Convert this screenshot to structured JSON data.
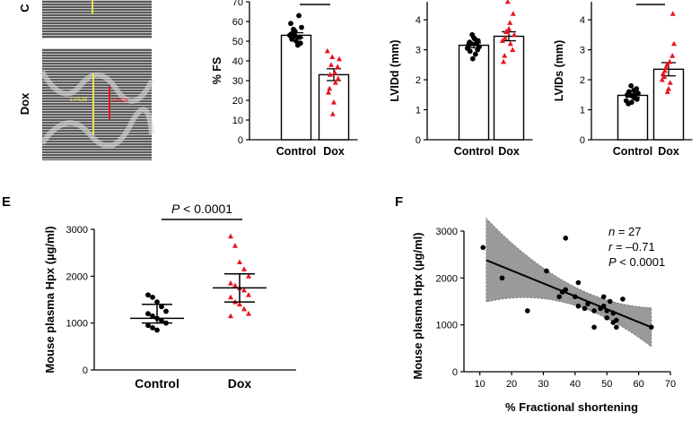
{
  "echo": {
    "top_label": "C",
    "bottom_label": "Dox",
    "lvid_d_label": "LVIDd",
    "lvid_s_label": "LVIDs"
  },
  "panels": {
    "e_letter": "E",
    "f_letter": "F"
  },
  "colors": {
    "control": "#000000",
    "dox": "#e8141d",
    "ci_band": "#9a9a9a"
  },
  "chart_data": [
    {
      "id": "fs",
      "type": "bar",
      "categories": [
        "Control",
        "Dox"
      ],
      "ylabel": "% FS",
      "ylim": [
        0,
        70
      ],
      "yticks": [
        0,
        10,
        20,
        30,
        40,
        50,
        60,
        70
      ],
      "values": [
        53,
        33
      ],
      "sem": [
        1.3,
        3.0
      ],
      "significance_bar": true,
      "points": [
        [
          53,
          56,
          52,
          48,
          57,
          51,
          54,
          50,
          52,
          49,
          59,
          53,
          55,
          63
        ],
        [
          45,
          38,
          34,
          29,
          41,
          26,
          33,
          19,
          37,
          31,
          24,
          42,
          13
        ]
      ]
    },
    {
      "id": "lvidd",
      "type": "bar",
      "categories": [
        "Control",
        "Dox"
      ],
      "ylabel": "LVIDd (mm)",
      "ylim": [
        0,
        4.6
      ],
      "yticks": [
        0,
        1,
        2,
        3,
        4
      ],
      "values": [
        3.15,
        3.45
      ],
      "sem": [
        0.08,
        0.15
      ],
      "points": [
        [
          3.05,
          3.2,
          3.35,
          2.85,
          3.1,
          3.25,
          2.95,
          3.4,
          3.0,
          3.3,
          3.15,
          3.5,
          2.7,
          3.2
        ],
        [
          3.3,
          3.6,
          3.9,
          3.2,
          3.5,
          2.8,
          3.4,
          3.7,
          3.0,
          4.2,
          2.6,
          3.6,
          4.6
        ]
      ]
    },
    {
      "id": "lvids",
      "type": "bar",
      "categories": [
        "Control",
        "Dox"
      ],
      "ylabel": "LVIDs (mm)",
      "ylim": [
        0,
        4.6
      ],
      "yticks": [
        0,
        1,
        2,
        3,
        4
      ],
      "values": [
        1.48,
        2.35
      ],
      "sem": [
        0.06,
        0.22
      ],
      "significance_bar": true,
      "points": [
        [
          1.3,
          1.5,
          1.65,
          1.4,
          1.55,
          1.2,
          1.6,
          1.45,
          1.7,
          1.35,
          1.5,
          1.8,
          1.25,
          1.5
        ],
        [
          2.0,
          2.4,
          2.6,
          1.9,
          3.2,
          2.1,
          2.3,
          1.7,
          2.8,
          4.2,
          2.2,
          2.5,
          1.6
        ]
      ]
    },
    {
      "id": "hpx",
      "type": "scatter",
      "categories": [
        "Control",
        "Dox"
      ],
      "ylabel": "Mouse plasma Hpx (µg/ml)",
      "ylim": [
        0,
        3000
      ],
      "yticks": [
        0,
        1000,
        2000,
        3000
      ],
      "annotation": "< 0.0001",
      "annotation_p": "P",
      "median": [
        1100,
        1750
      ],
      "iqr": [
        [
          1000,
          1400
        ],
        [
          1450,
          2050
        ]
      ],
      "points": [
        [
          1600,
          1550,
          1450,
          1350,
          1250,
          1200,
          1150,
          1100,
          1050,
          1000,
          950,
          900,
          850
        ],
        [
          2850,
          2650,
          2300,
          2150,
          2000,
          1850,
          1800,
          1750,
          1700,
          1600,
          1550,
          1450,
          1400,
          1300,
          1200,
          1150
        ]
      ]
    },
    {
      "id": "corr",
      "type": "scatter",
      "xlabel": "% Fractional shortening",
      "ylabel": "Mouse plasma Hpx (µg/ml)",
      "xlim": [
        5,
        70
      ],
      "ylim": [
        0,
        3000
      ],
      "xticks": [
        10,
        20,
        30,
        40,
        50,
        60,
        70
      ],
      "yticks": [
        0,
        1000,
        2000,
        3000
      ],
      "stats": {
        "n_label": "n",
        "n_value": " = 27",
        "r_label": "r",
        "r_value": " = –0.71",
        "p_label": "P",
        "p_value": " < 0.0001"
      },
      "fit": {
        "x": [
          12,
          64
        ],
        "y": [
          2380,
          950
        ]
      },
      "points": [
        [
          11,
          2650
        ],
        [
          17,
          2000
        ],
        [
          25,
          1300
        ],
        [
          31,
          2150
        ],
        [
          35,
          1600
        ],
        [
          36,
          1700
        ],
        [
          37,
          2850
        ],
        [
          37,
          1750
        ],
        [
          40,
          1600
        ],
        [
          41,
          1400
        ],
        [
          41,
          1900
        ],
        [
          43,
          1350
        ],
        [
          44,
          1450
        ],
        [
          46,
          950
        ],
        [
          46,
          1300
        ],
        [
          48,
          1350
        ],
        [
          49,
          1400
        ],
        [
          49,
          1600
        ],
        [
          50,
          1150
        ],
        [
          50,
          1300
        ],
        [
          51,
          1500
        ],
        [
          52,
          1250
        ],
        [
          52,
          1050
        ],
        [
          53,
          950
        ],
        [
          53,
          1100
        ],
        [
          55,
          1550
        ],
        [
          64,
          950
        ]
      ]
    }
  ]
}
